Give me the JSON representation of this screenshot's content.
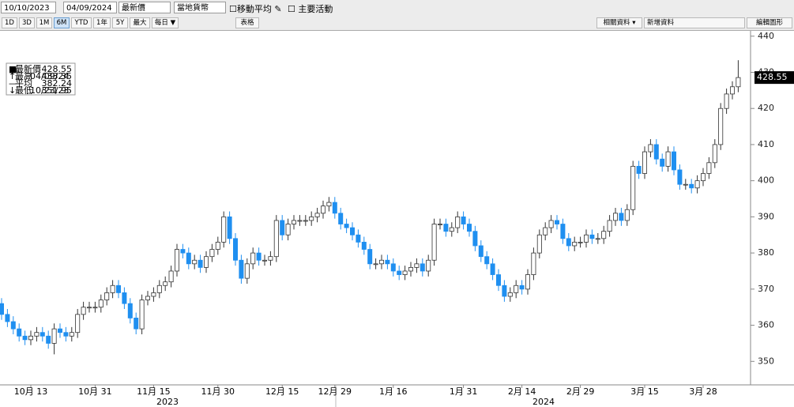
{
  "toolbar": {
    "start_date": "10/10/2023",
    "end_date": "04/09/2024",
    "field": "最新價",
    "currency": "當地貨幣",
    "checkboxes": [
      "移動平均",
      "主要活動"
    ],
    "ranges": [
      "1D",
      "3D",
      "1M",
      "6M",
      "YTD",
      "1年",
      "5Y",
      "最大",
      "每日 ▼"
    ],
    "table": "表格",
    "related": "相關資料 ▾",
    "add": "新增資料",
    "edit": "編輯圖形"
  },
  "chart_data": {
    "type": "candlestick",
    "categories": [
      null,
      null,
      null,
      null,
      null,
      "10月 13",
      null,
      null,
      null,
      null,
      null,
      null,
      null,
      null,
      null,
      null,
      "10月 31",
      null,
      null,
      null,
      null,
      null,
      null,
      null,
      null,
      null,
      "11月 15",
      null,
      null,
      null,
      null,
      null,
      null,
      null,
      null,
      null,
      null,
      "11月 30",
      null,
      null,
      null,
      null,
      null,
      null,
      null,
      null,
      null,
      null,
      "12月 15",
      null,
      null,
      null,
      null,
      null,
      null,
      null,
      null,
      "12月 29",
      null,
      null,
      null,
      null,
      null,
      null,
      null,
      null,
      null,
      "1月 16",
      null,
      null,
      null,
      null,
      null,
      null,
      null,
      null,
      null,
      null,
      null,
      "1月 31",
      null,
      null,
      null,
      null,
      null,
      null,
      null,
      null,
      null,
      "2月 14",
      null,
      null,
      null,
      null,
      null,
      null,
      null,
      null,
      null,
      "2月 29",
      null,
      null,
      null,
      null,
      null,
      null,
      null,
      null,
      null,
      null,
      "3月 15",
      null,
      null,
      null,
      null,
      null,
      null,
      null,
      null,
      null,
      "3月 28",
      null,
      null,
      null,
      null,
      null,
      null
    ],
    "years": [
      "2023",
      "2024"
    ],
    "open": [
      366,
      363,
      361,
      359,
      357,
      356,
      357,
      358,
      357,
      355,
      359,
      358,
      357,
      358,
      363,
      365,
      365,
      365,
      367,
      369,
      371,
      369,
      366,
      362,
      359,
      367,
      368,
      369,
      371,
      372,
      375,
      381,
      380,
      377,
      378,
      376,
      379,
      381,
      383,
      390,
      384,
      378,
      373,
      377,
      380,
      378,
      378,
      379,
      389,
      385,
      388,
      389,
      389,
      389,
      390,
      391,
      393,
      394,
      391,
      388,
      387,
      385,
      383,
      381,
      377,
      377,
      378,
      377,
      375,
      374,
      375,
      376,
      377,
      375,
      378,
      388,
      388,
      386,
      387,
      390,
      388,
      386,
      382,
      379,
      377,
      374,
      371,
      368,
      369,
      371,
      370,
      374,
      380,
      385,
      387,
      389,
      388,
      384,
      382,
      383,
      383,
      385,
      384,
      384,
      386,
      389,
      391,
      389,
      392,
      404,
      402,
      408,
      410,
      406,
      404,
      408,
      403,
      399,
      399,
      398,
      400,
      402,
      405,
      410,
      420,
      424,
      426
    ],
    "high": [
      367.5,
      364.5,
      362.5,
      360.5,
      358.5,
      358.5,
      359.5,
      359.5,
      358.5,
      360.5,
      360.5,
      359.5,
      359.5,
      364.5,
      366.5,
      366.5,
      366.5,
      368.5,
      370.5,
      372.5,
      372.5,
      370.5,
      367.5,
      363.5,
      368.5,
      369.5,
      370.5,
      372.5,
      373.5,
      376.5,
      382.5,
      382.5,
      381.5,
      379.5,
      379.5,
      380.5,
      382.5,
      384.5,
      391.5,
      391.5,
      385.5,
      379.5,
      378.5,
      381.5,
      381.5,
      379.5,
      380.5,
      390.5,
      390.5,
      389.5,
      390.5,
      390.5,
      390.5,
      391.5,
      392.5,
      394.5,
      395.5,
      395.5,
      392.5,
      389.5,
      388.5,
      386.5,
      384.5,
      382.5,
      378.5,
      379.5,
      379.5,
      378.5,
      376.5,
      376.5,
      377.5,
      378.5,
      378.5,
      379.5,
      389.5,
      389.5,
      389.5,
      388.5,
      391.5,
      391.5,
      389.5,
      387.5,
      383.5,
      380.5,
      378.5,
      375.5,
      372.5,
      370.5,
      372.5,
      372.5,
      375.5,
      381.5,
      386.5,
      388.5,
      390.5,
      390.5,
      389.5,
      385.5,
      384.5,
      384.5,
      386.5,
      386.5,
      385.5,
      387.5,
      390.5,
      392.5,
      392.5,
      393.5,
      405.5,
      405.5,
      409.5,
      411.5,
      411.5,
      407.5,
      409.5,
      409.5,
      404.5,
      400.5,
      400.5,
      401.5,
      403.5,
      406.5,
      411.5,
      421.5,
      425.5,
      427.5,
      433.35
    ],
    "low": [
      361.5,
      359.5,
      357.5,
      355.5,
      354.5,
      354.5,
      355.5,
      355.5,
      353.5,
      351.95,
      356.5,
      355.5,
      355.5,
      356.5,
      361.5,
      363.5,
      363.5,
      363.5,
      365.5,
      367.5,
      367.5,
      364.5,
      360.5,
      357.5,
      357.5,
      365.5,
      366.5,
      367.5,
      369.5,
      370.5,
      373.5,
      378.5,
      375.5,
      375.5,
      374.5,
      374.5,
      377.5,
      379.5,
      381.5,
      382.5,
      376.5,
      371.5,
      371.5,
      375.5,
      376.5,
      376.5,
      376.5,
      377.5,
      383.5,
      383.5,
      386.5,
      387.5,
      387.5,
      387.5,
      388.5,
      389.5,
      391.5,
      389.5,
      386.5,
      385.5,
      383.5,
      381.5,
      379.5,
      375.5,
      375.5,
      375.5,
      375.5,
      373.5,
      372.5,
      372.5,
      373.5,
      374.5,
      373.5,
      373.5,
      376.5,
      386.5,
      384.5,
      384.5,
      385.5,
      386.5,
      384.5,
      380.5,
      377.5,
      375.5,
      372.5,
      369.5,
      366.5,
      366.5,
      367.5,
      368.5,
      368.5,
      372.5,
      378.5,
      383.5,
      385.5,
      386.5,
      382.5,
      380.5,
      380.5,
      381.5,
      381.5,
      382.5,
      382.5,
      382.5,
      384.5,
      387.5,
      387.5,
      387.5,
      390.5,
      400.5,
      400.5,
      406.5,
      404.5,
      402.5,
      402.5,
      401.5,
      397.5,
      397.5,
      396.5,
      396.5,
      398.5,
      400.5,
      403.5,
      408.5,
      418.5,
      422.5,
      424.5
    ],
    "close": [
      363,
      361,
      359,
      357,
      356,
      357,
      358,
      357,
      355,
      359,
      358,
      357,
      358,
      363,
      365,
      365,
      365,
      367,
      369,
      371,
      369,
      366,
      362,
      359,
      367,
      368,
      369,
      371,
      372,
      375,
      381,
      380,
      377,
      378,
      376,
      379,
      381,
      383,
      390,
      384,
      378,
      373,
      377,
      380,
      378,
      378,
      379,
      389,
      385,
      388,
      389,
      389,
      389,
      390,
      391,
      393,
      394,
      391,
      388,
      387,
      385,
      383,
      381,
      377,
      377,
      378,
      377,
      375,
      374,
      375,
      376,
      377,
      375,
      378,
      388,
      388,
      386,
      387,
      390,
      388,
      386,
      382,
      379,
      377,
      374,
      371,
      368,
      369,
      371,
      370,
      374,
      380,
      385,
      387,
      389,
      388,
      384,
      382,
      383,
      383,
      385,
      384,
      384,
      386,
      389,
      391,
      389,
      392,
      404,
      402,
      408,
      410,
      406,
      404,
      408,
      403,
      399,
      399,
      398,
      400,
      402,
      405,
      410,
      420,
      424,
      426,
      428.55
    ],
    "up_color": "#ffffff",
    "down_color": "#1f8ff0",
    "ylim": [
      343.5,
      441.7
    ],
    "yticks": [
      350,
      360,
      370,
      380,
      390,
      400,
      410,
      420,
      430,
      440
    ],
    "grid": false,
    "legend": {
      "last": "最新價",
      "high": "最高",
      "high_date": "04/09/24",
      "mean": "平均",
      "mean_value": 382.24,
      "low": "最低",
      "low_date": "10/23/23"
    }
  }
}
